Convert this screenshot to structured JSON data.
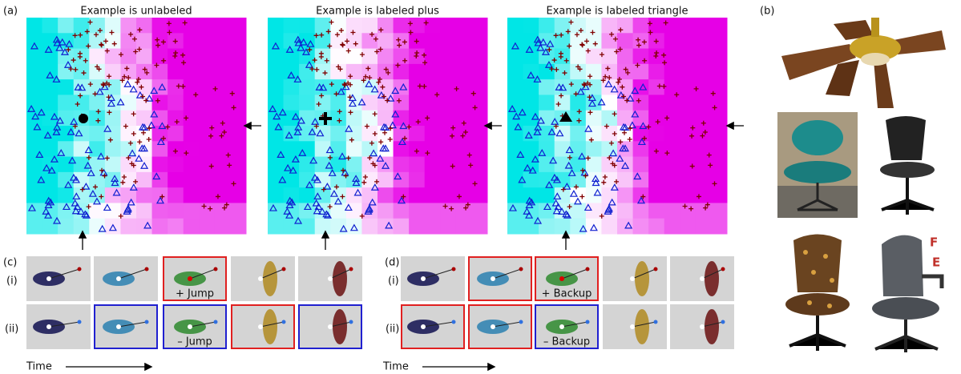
{
  "panel_a": {
    "label": "(a)",
    "titles": [
      "Example is unlabeled",
      "Example is labeled plus",
      "Example is labeled triangle"
    ]
  },
  "panel_b": {
    "label": "(b)",
    "annotations": [
      "F",
      "E"
    ]
  },
  "panel_c": {
    "label": "(c)",
    "rows": [
      "(i)",
      "(ii)"
    ],
    "captions": [
      "+ Jump",
      "– Jump"
    ],
    "time": "Time"
  },
  "panel_d": {
    "label": "(d)",
    "rows": [
      "(i)",
      "(ii)"
    ],
    "captions": [
      "+ Backup",
      "– Backup"
    ],
    "time": "Time"
  }
}
